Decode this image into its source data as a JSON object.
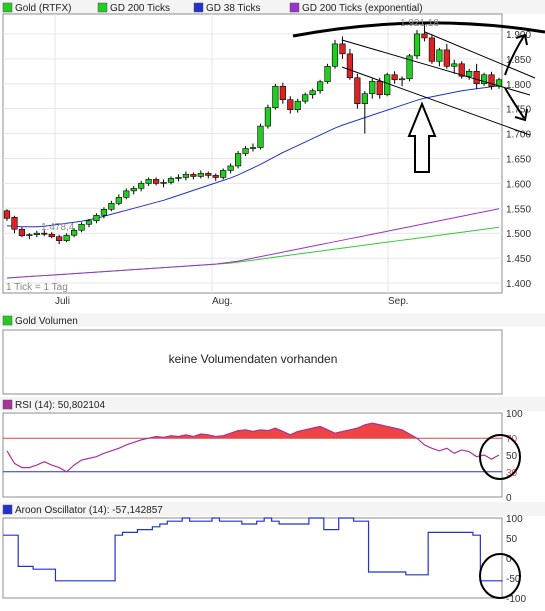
{
  "colors": {
    "frame": "#8c8c8c",
    "grid": "#e6e6e6",
    "legend_bg": "#f4f4f4",
    "up": "#22cc22",
    "down": "#dd2222",
    "wick": "#000000",
    "ma38": "#2233cc",
    "ma200": "#33cc33",
    "ma200e": "#9933cc",
    "rsi_line": "#aa3399",
    "rsi_fill": "#ee4444",
    "rsi_upper": "#dd4444",
    "rsi_lower": "#2233cc",
    "aroon": "#2233cc",
    "annot": "#000000",
    "channel": "#000000"
  },
  "price_panel": {
    "legend": [
      {
        "label": "Gold (RTFX)",
        "swatch": "#22cc22"
      },
      {
        "label": "GD 200 Ticks",
        "swatch": "#22cc22"
      },
      {
        "label": "GD 38 Ticks",
        "swatch": "#2233cc"
      },
      {
        "label": "GD 200 Ticks (exponential)",
        "swatch": "#9933cc"
      }
    ],
    "tick_note": "1 Tick = 1 Tag",
    "low_label": "1.478,4",
    "high_label": "1.921,18",
    "x_labels": [
      "Juli",
      "Aug.",
      "Sep."
    ],
    "y_tick_labels": [
      "1.900",
      "1.850",
      "1.800",
      "1.750",
      "1.700",
      "1.650",
      "1.600",
      "1.550",
      "1.500",
      "1.450",
      "1.400"
    ]
  },
  "volume_panel": {
    "legend": "Gold Volumen",
    "message": "keine Volumendaten vorhanden",
    "swatch": "#22cc22"
  },
  "rsi_panel": {
    "legend": "RSI (14): 50,802104",
    "swatch": "#aa3399",
    "y_tick_labels": [
      "100",
      "70",
      "50",
      "30",
      "0"
    ]
  },
  "aroon_panel": {
    "legend": "Aroon Oscillator (14): -57,142857",
    "swatch": "#2233cc",
    "y_tick_labels": [
      "100",
      "50",
      "0",
      "-50",
      "-100"
    ]
  },
  "chart_data": [
    {
      "type": "candlestick",
      "title": "Gold (RTFX)",
      "x_labels": [
        "Juli",
        "Aug.",
        "Sep."
      ],
      "ylim": [
        1380,
        1940
      ],
      "ohlc": [
        [
          1545,
          1548,
          1525,
          1530
        ],
        [
          1532,
          1535,
          1500,
          1508
        ],
        [
          1508,
          1512,
          1492,
          1495
        ],
        [
          1495,
          1500,
          1488,
          1497
        ],
        [
          1497,
          1505,
          1492,
          1500
        ],
        [
          1500,
          1506,
          1494,
          1498
        ],
        [
          1498,
          1502,
          1490,
          1493
        ],
        [
          1493,
          1497,
          1478,
          1485
        ],
        [
          1485,
          1500,
          1482,
          1496
        ],
        [
          1496,
          1510,
          1492,
          1506
        ],
        [
          1506,
          1522,
          1502,
          1518
        ],
        [
          1518,
          1528,
          1512,
          1525
        ],
        [
          1525,
          1540,
          1520,
          1536
        ],
        [
          1536,
          1552,
          1530,
          1548
        ],
        [
          1548,
          1565,
          1544,
          1560
        ],
        [
          1560,
          1578,
          1556,
          1572
        ],
        [
          1572,
          1590,
          1568,
          1585
        ],
        [
          1585,
          1595,
          1578,
          1590
        ],
        [
          1590,
          1605,
          1584,
          1600
        ],
        [
          1600,
          1612,
          1595,
          1608
        ],
        [
          1608,
          1612,
          1596,
          1600
        ],
        [
          1600,
          1608,
          1592,
          1602
        ],
        [
          1602,
          1614,
          1598,
          1610
        ],
        [
          1610,
          1618,
          1604,
          1612
        ],
        [
          1612,
          1624,
          1606,
          1618
        ],
        [
          1618,
          1622,
          1608,
          1614
        ],
        [
          1614,
          1626,
          1610,
          1620
        ],
        [
          1620,
          1624,
          1610,
          1616
        ],
        [
          1616,
          1620,
          1605,
          1612
        ],
        [
          1612,
          1630,
          1608,
          1626
        ],
        [
          1626,
          1640,
          1620,
          1635
        ],
        [
          1635,
          1665,
          1630,
          1660
        ],
        [
          1660,
          1675,
          1655,
          1670
        ],
        [
          1670,
          1680,
          1664,
          1672
        ],
        [
          1672,
          1720,
          1668,
          1715
        ],
        [
          1715,
          1758,
          1710,
          1752
        ],
        [
          1752,
          1800,
          1748,
          1795
        ],
        [
          1795,
          1802,
          1760,
          1768
        ],
        [
          1768,
          1775,
          1740,
          1748
        ],
        [
          1748,
          1770,
          1742,
          1765
        ],
        [
          1765,
          1782,
          1760,
          1778
        ],
        [
          1778,
          1790,
          1770,
          1786
        ],
        [
          1786,
          1808,
          1780,
          1804
        ],
        [
          1804,
          1840,
          1800,
          1835
        ],
        [
          1835,
          1888,
          1830,
          1880
        ],
        [
          1880,
          1895,
          1850,
          1860
        ],
        [
          1860,
          1870,
          1808,
          1812
        ],
        [
          1812,
          1820,
          1750,
          1760
        ],
        [
          1760,
          1785,
          1700,
          1780
        ],
        [
          1780,
          1810,
          1770,
          1805
        ],
        [
          1805,
          1812,
          1770,
          1778
        ],
        [
          1778,
          1822,
          1775,
          1818
        ],
        [
          1818,
          1825,
          1800,
          1808
        ],
        [
          1808,
          1815,
          1795,
          1810
        ],
        [
          1810,
          1860,
          1805,
          1856
        ],
        [
          1856,
          1908,
          1850,
          1900
        ],
        [
          1900,
          1921,
          1885,
          1892
        ],
        [
          1892,
          1898,
          1840,
          1845
        ],
        [
          1845,
          1872,
          1835,
          1868
        ],
        [
          1868,
          1880,
          1830,
          1835
        ],
        [
          1835,
          1848,
          1820,
          1840
        ],
        [
          1840,
          1845,
          1810,
          1815
        ],
        [
          1815,
          1830,
          1808,
          1825
        ],
        [
          1825,
          1840,
          1790,
          1800
        ],
        [
          1800,
          1822,
          1796,
          1818
        ],
        [
          1818,
          1824,
          1788,
          1795
        ],
        [
          1795,
          1812,
          1790,
          1808
        ]
      ],
      "series": [
        {
          "name": "GD 38 Ticks",
          "values": [
            1515,
            1514,
            1513,
            1513,
            1513,
            1514,
            1516,
            1518,
            1520,
            1522,
            1524,
            1527,
            1530,
            1534,
            1538,
            1542,
            1546,
            1550,
            1554,
            1558,
            1562,
            1566,
            1571,
            1576,
            1581,
            1586,
            1591,
            1596,
            1601,
            1606,
            1611,
            1617,
            1624,
            1631,
            1638,
            1646,
            1654,
            1662,
            1669,
            1676,
            1683,
            1690,
            1697,
            1704,
            1711,
            1717,
            1722,
            1727,
            1732,
            1737,
            1742,
            1747,
            1752,
            1757,
            1762,
            1767,
            1771,
            1774,
            1777,
            1780,
            1783,
            1786,
            1788,
            1790,
            1792,
            1794,
            1796
          ]
        },
        {
          "name": "GD 200 Ticks",
          "values": [
            1410,
            1411,
            1412,
            1413,
            1414,
            1415,
            1416,
            1417,
            1418,
            1419,
            1420,
            1421,
            1422,
            1423,
            1424,
            1425,
            1426,
            1427,
            1428,
            1429,
            1430,
            1431,
            1432,
            1433,
            1434,
            1435,
            1436,
            1437,
            1438,
            1439,
            1440,
            1442,
            1444,
            1446,
            1448,
            1450,
            1452,
            1454,
            1456,
            1458,
            1460,
            1462,
            1464,
            1466,
            1468,
            1470,
            1472,
            1474,
            1476,
            1478,
            1480,
            1482,
            1484,
            1486,
            1488,
            1490,
            1492,
            1494,
            1496,
            1498,
            1500,
            1502,
            1504,
            1506,
            1508,
            1510,
            1512
          ]
        },
        {
          "name": "GD 200 Ticks (exponential)",
          "values": [
            1410,
            1411,
            1412,
            1413,
            1414,
            1415,
            1416,
            1417,
            1418,
            1419,
            1420,
            1421,
            1422,
            1423,
            1424,
            1425,
            1426,
            1427,
            1428,
            1429,
            1430,
            1431,
            1432,
            1433,
            1434,
            1435,
            1436,
            1437,
            1438,
            1440,
            1442,
            1444,
            1447,
            1450,
            1453,
            1456,
            1459,
            1462,
            1465,
            1468,
            1471,
            1474,
            1477,
            1480,
            1483,
            1486,
            1489,
            1492,
            1495,
            1498,
            1501,
            1504,
            1507,
            1510,
            1513,
            1516,
            1519,
            1522,
            1525,
            1528,
            1531,
            1534,
            1537,
            1540,
            1543,
            1546,
            1549
          ]
        }
      ]
    },
    {
      "type": "line",
      "title": "RSI (14): 50,802104",
      "ylim": [
        0,
        100
      ],
      "thresholds": [
        30,
        70
      ],
      "series": [
        {
          "name": "RSI (14)",
          "values": [
            55,
            40,
            35,
            35,
            38,
            42,
            38,
            35,
            30,
            38,
            44,
            46,
            48,
            52,
            55,
            58,
            62,
            65,
            68,
            70,
            72,
            71,
            73,
            72,
            74,
            72,
            75,
            74,
            72,
            73,
            76,
            79,
            80,
            78,
            80,
            79,
            82,
            78,
            74,
            78,
            80,
            82,
            84,
            80,
            76,
            78,
            80,
            82,
            86,
            88,
            86,
            84,
            82,
            80,
            75,
            70,
            62,
            58,
            55,
            58,
            52,
            56,
            54,
            48,
            50,
            45,
            50
          ]
        }
      ]
    },
    {
      "type": "line",
      "title": "Aroon Oscillator (14): -57,142857",
      "ylim": [
        -100,
        100
      ],
      "series": [
        {
          "name": "Aroon Oscillator (14)",
          "values": [
            57,
            57,
            -21,
            -21,
            -28,
            -28,
            -28,
            -57,
            -57,
            -57,
            -57,
            -57,
            -57,
            -57,
            -57,
            57,
            64,
            64,
            71,
            71,
            78,
            85,
            92,
            92,
            100,
            92,
            92,
            92,
            100,
            92,
            92,
            92,
            85,
            85,
            92,
            100,
            92,
            85,
            85,
            85,
            85,
            100,
            100,
            71,
            71,
            100,
            100,
            92,
            92,
            -35,
            -35,
            -35,
            -35,
            -35,
            -42,
            -42,
            -42,
            64,
            64,
            64,
            64,
            64,
            64,
            57,
            -57,
            -57,
            -57
          ]
        }
      ]
    }
  ]
}
